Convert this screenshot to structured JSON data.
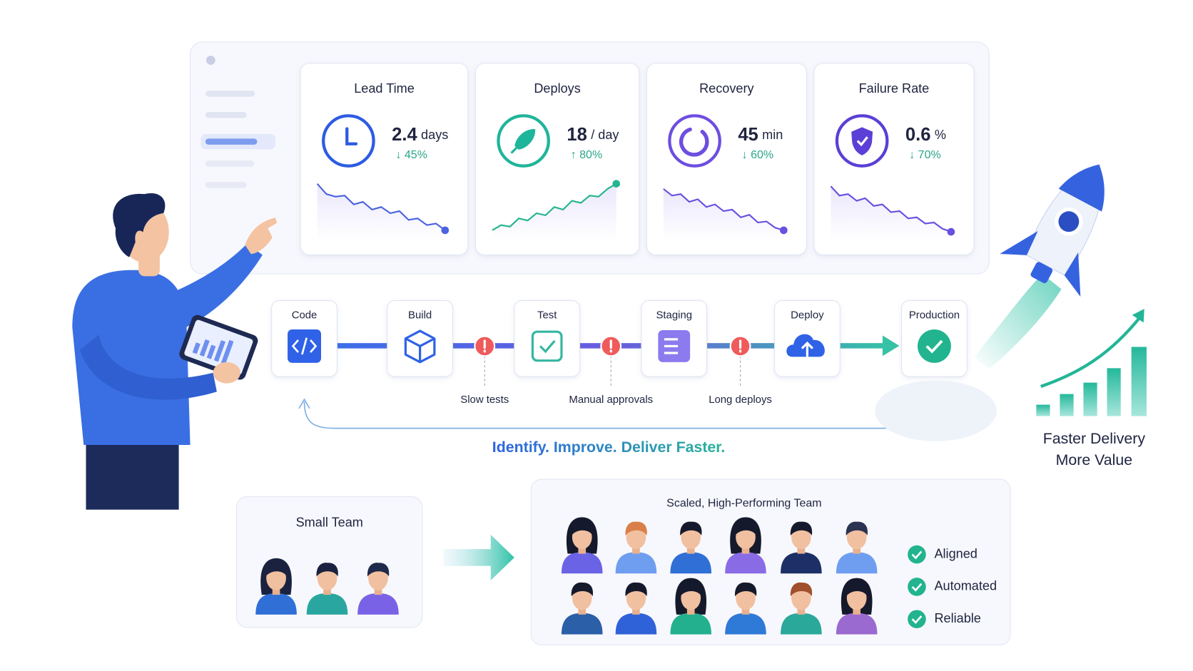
{
  "dashboard": {
    "metrics": [
      {
        "title": "Lead Time",
        "value": "2.4",
        "unit": "days",
        "change": "↓ 45%"
      },
      {
        "title": "Deploys",
        "value": "18",
        "unit": "/ day",
        "change": "↑ 80%"
      },
      {
        "title": "Recovery",
        "value": "45",
        "unit": "min",
        "change": "↓ 60%"
      },
      {
        "title": "Failure Rate",
        "value": "0.6",
        "unit": "%",
        "change": "↓ 70%"
      }
    ]
  },
  "pipeline": {
    "stages": [
      "Code",
      "Build",
      "Test",
      "Staging",
      "Deploy",
      "Production"
    ],
    "bottlenecks": [
      "Slow tests",
      "Manual approvals",
      "Long deploys"
    ],
    "tagline": "Identify. Improve. Deliver Faster."
  },
  "outcome": [
    "Faster Delivery",
    "More Value"
  ],
  "teams": {
    "small": "Small Team",
    "scaled": "Scaled, High-Performing Team",
    "traits": [
      "Aligned",
      "Automated",
      "Reliable"
    ]
  }
}
